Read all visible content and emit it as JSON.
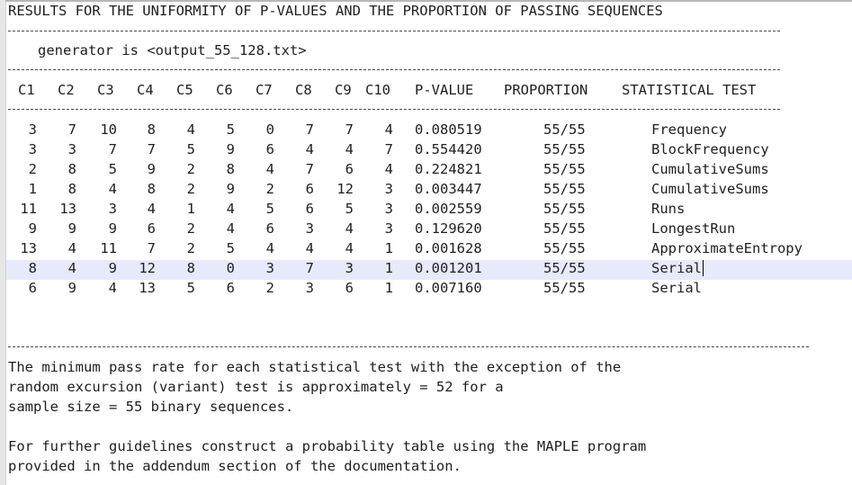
{
  "report": {
    "title": "RESULTS FOR THE UNIFORMITY OF P-VALUES AND THE PROPORTION OF PASSING SEQUENCES",
    "generator_line": "generator is <output_55_128.txt>",
    "headers": [
      "C1",
      "C2",
      "C3",
      "C4",
      "C5",
      "C6",
      "C7",
      "C8",
      "C9",
      "C10",
      "P-VALUE",
      "PROPORTION",
      "STATISTICAL TEST"
    ],
    "rows": [
      {
        "c": [
          "3",
          "7",
          "10",
          "8",
          "4",
          "5",
          "0",
          "7",
          "7",
          "4"
        ],
        "pvalue": "0.080519",
        "proportion": "55/55",
        "test": "Frequency"
      },
      {
        "c": [
          "3",
          "3",
          "7",
          "7",
          "5",
          "9",
          "6",
          "4",
          "4",
          "7"
        ],
        "pvalue": "0.554420",
        "proportion": "55/55",
        "test": "BlockFrequency"
      },
      {
        "c": [
          "2",
          "8",
          "5",
          "9",
          "2",
          "8",
          "4",
          "7",
          "6",
          "4"
        ],
        "pvalue": "0.224821",
        "proportion": "55/55",
        "test": "CumulativeSums"
      },
      {
        "c": [
          "1",
          "8",
          "4",
          "8",
          "2",
          "9",
          "2",
          "6",
          "12",
          "3"
        ],
        "pvalue": "0.003447",
        "proportion": "55/55",
        "test": "CumulativeSums"
      },
      {
        "c": [
          "11",
          "13",
          "3",
          "4",
          "1",
          "4",
          "5",
          "6",
          "5",
          "3"
        ],
        "pvalue": "0.002559",
        "proportion": "55/55",
        "test": "Runs"
      },
      {
        "c": [
          "9",
          "9",
          "9",
          "6",
          "2",
          "4",
          "6",
          "3",
          "4",
          "3"
        ],
        "pvalue": "0.129620",
        "proportion": "55/55",
        "test": "LongestRun"
      },
      {
        "c": [
          "13",
          "4",
          "11",
          "7",
          "2",
          "5",
          "4",
          "4",
          "4",
          "1"
        ],
        "pvalue": "0.001628",
        "proportion": "55/55",
        "test": "ApproximateEntropy"
      },
      {
        "c": [
          "8",
          "4",
          "9",
          "12",
          "8",
          "0",
          "3",
          "7",
          "3",
          "1"
        ],
        "pvalue": "0.001201",
        "proportion": "55/55",
        "test": "Serial"
      },
      {
        "c": [
          "6",
          "9",
          "4",
          "13",
          "5",
          "6",
          "2",
          "3",
          "6",
          "1"
        ],
        "pvalue": "0.007160",
        "proportion": "55/55",
        "test": "Serial"
      }
    ],
    "notes": [
      "The minimum pass rate for each statistical test with the exception of the",
      "random excursion (variant) test is approximately = 52 for a",
      "sample size = 55 binary sequences.",
      "",
      "For further guidelines construct a probability table using the MAPLE program",
      "provided in the addendum section of the documentation."
    ],
    "highlighted_row_index": 7
  }
}
